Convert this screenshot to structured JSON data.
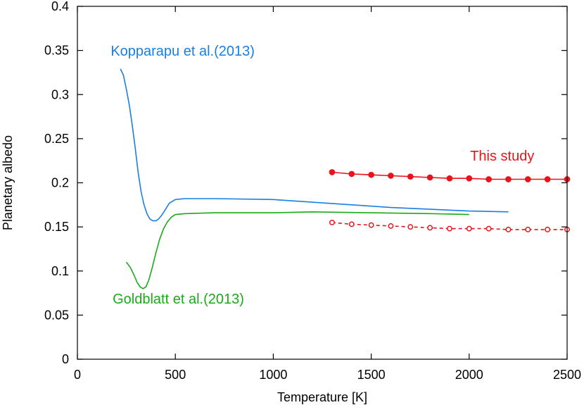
{
  "chart_data": {
    "type": "line",
    "title": "",
    "xlabel": "Temperature [K]",
    "ylabel": "Planetary albedo",
    "xlim": [
      0,
      2500
    ],
    "ylim": [
      0,
      0.4
    ],
    "xticks": [
      0,
      500,
      1000,
      1500,
      2000,
      2500
    ],
    "yticks": [
      0,
      0.05,
      0.1,
      0.15,
      0.2,
      0.25,
      0.3,
      0.35,
      0.4
    ],
    "xtick_labels": [
      "0",
      "500",
      "1000",
      "1500",
      "2000",
      "2500"
    ],
    "ytick_labels": [
      "0",
      "0.05",
      "0.1",
      "0.15",
      "0.2",
      "0.25",
      "0.3",
      "0.35",
      "0.4"
    ],
    "grid": false,
    "legend": "none",
    "annotations": [
      {
        "text": "Kopparapu et al.(2013)",
        "color": "#1a7fe0",
        "x": 170,
        "y": 0.344
      },
      {
        "text": "Goldblatt et al.(2013)",
        "color": "#1aaa1a",
        "x": 180,
        "y": 0.063
      },
      {
        "text": "This study",
        "color": "#e8141b",
        "x": 2005,
        "y": 0.225
      }
    ],
    "series": [
      {
        "color": "#1a7fe0",
        "style": "solid",
        "markers": "none",
        "x": [
          220,
          235,
          250,
          265,
          280,
          295,
          310,
          325,
          340,
          355,
          370,
          385,
          400,
          415,
          430,
          450,
          470,
          500,
          550,
          700,
          1000,
          1200,
          1400,
          1600,
          1800,
          2000,
          2200
        ],
        "y": [
          0.329,
          0.322,
          0.306,
          0.288,
          0.265,
          0.24,
          0.212,
          0.19,
          0.175,
          0.165,
          0.159,
          0.157,
          0.157,
          0.159,
          0.163,
          0.17,
          0.177,
          0.181,
          0.182,
          0.182,
          0.181,
          0.178,
          0.175,
          0.172,
          0.17,
          0.168,
          0.167
        ]
      },
      {
        "color": "#1aaa1a",
        "style": "solid",
        "markers": "none",
        "x": [
          250,
          270,
          290,
          305,
          320,
          335,
          350,
          365,
          380,
          400,
          420,
          440,
          460,
          480,
          500,
          550,
          700,
          1000,
          1200,
          1500,
          1800,
          2000
        ],
        "y": [
          0.11,
          0.104,
          0.095,
          0.087,
          0.082,
          0.08,
          0.082,
          0.09,
          0.102,
          0.12,
          0.136,
          0.148,
          0.156,
          0.161,
          0.164,
          0.165,
          0.166,
          0.166,
          0.167,
          0.166,
          0.165,
          0.164
        ]
      },
      {
        "color": "#e8141b",
        "style": "solid",
        "markers": "filled-circle",
        "x": [
          1300,
          1400,
          1500,
          1600,
          1700,
          1800,
          1900,
          2000,
          2100,
          2200,
          2300,
          2400,
          2500
        ],
        "y": [
          0.212,
          0.21,
          0.209,
          0.208,
          0.207,
          0.206,
          0.205,
          0.205,
          0.204,
          0.204,
          0.204,
          0.204,
          0.204
        ]
      },
      {
        "color": "#e8141b",
        "style": "dashed",
        "markers": "open-circle",
        "x": [
          1300,
          1400,
          1500,
          1600,
          1700,
          1800,
          1900,
          2000,
          2100,
          2200,
          2300,
          2400,
          2500
        ],
        "y": [
          0.155,
          0.153,
          0.152,
          0.151,
          0.15,
          0.149,
          0.148,
          0.148,
          0.148,
          0.147,
          0.147,
          0.147,
          0.147
        ]
      }
    ]
  }
}
